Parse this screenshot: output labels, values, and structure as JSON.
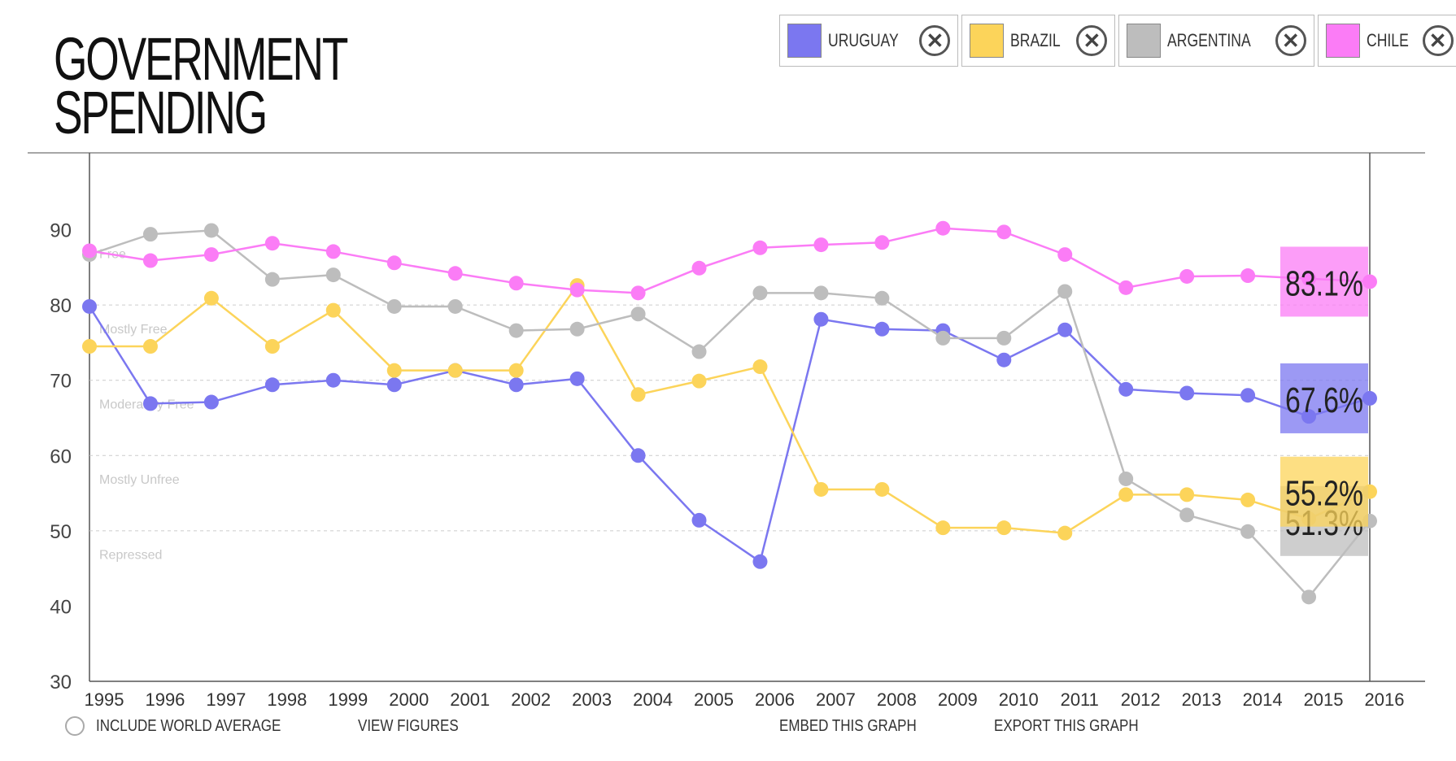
{
  "title": {
    "line1": "GOVERNMENT",
    "line2": "SPENDING"
  },
  "colors": {
    "uruguay": "#7b77f0",
    "brazil": "#fcd45a",
    "argentina": "#bdbdbd",
    "chile": "#fb7cf6"
  },
  "legend": [
    {
      "label": "URUGUAY",
      "color": "#7b77f0",
      "close": "✕"
    },
    {
      "label": "BRAZIL",
      "color": "#fcd45a",
      "close": "✕"
    },
    {
      "label": "ARGENTINA",
      "color": "#bdbdbd",
      "close": "✕"
    },
    {
      "label": "CHILE",
      "color": "#fb7cf6",
      "close": "✕"
    }
  ],
  "controls": {
    "world_average": "INCLUDE WORLD AVERAGE",
    "view_figures": "VIEW FIGURES",
    "embed": "EMBED THIS GRAPH",
    "export": "EXPORT THIS GRAPH"
  },
  "chart_data": {
    "type": "line",
    "title": "GOVERNMENT SPENDING",
    "xlabel": "",
    "ylabel": "",
    "ylim": [
      30,
      100
    ],
    "yticks": [
      30,
      40,
      50,
      60,
      70,
      80,
      90
    ],
    "x": [
      1995,
      1996,
      1997,
      1998,
      1999,
      2000,
      2001,
      2002,
      2003,
      2004,
      2005,
      2006,
      2007,
      2008,
      2009,
      2010,
      2011,
      2012,
      2013,
      2014,
      2015,
      2016
    ],
    "bands": [
      {
        "label": "Free",
        "y": 87
      },
      {
        "label": "Mostly Free",
        "y": 77
      },
      {
        "label": "Moderately Free",
        "y": 67
      },
      {
        "label": "Mostly Unfree",
        "y": 57
      },
      {
        "label": "Repressed",
        "y": 47
      }
    ],
    "grid": [
      50,
      60,
      70,
      80
    ],
    "series": [
      {
        "name": "URUGUAY",
        "color": "#7b77f0",
        "latest_label": "67.6%",
        "values": [
          79.8,
          66.9,
          67.1,
          69.4,
          70.0,
          69.4,
          71.3,
          69.4,
          70.2,
          60.0,
          51.4,
          45.9,
          78.1,
          76.8,
          76.6,
          72.7,
          76.7,
          68.8,
          68.3,
          68.0,
          65.2,
          67.6
        ]
      },
      {
        "name": "BRAZIL",
        "color": "#fcd45a",
        "latest_label": "55.2%",
        "values": [
          74.5,
          74.5,
          80.9,
          74.5,
          79.3,
          71.3,
          71.3,
          71.3,
          82.6,
          68.1,
          69.9,
          71.8,
          55.5,
          55.5,
          50.4,
          50.4,
          49.7,
          54.8,
          54.8,
          54.1,
          51.6,
          55.2
        ]
      },
      {
        "name": "ARGENTINA",
        "color": "#bdbdbd",
        "latest_label": "51.3%",
        "values": [
          86.7,
          89.4,
          89.9,
          83.4,
          84.0,
          79.8,
          79.8,
          76.6,
          76.8,
          78.8,
          73.8,
          81.6,
          81.6,
          80.9,
          75.6,
          75.6,
          81.8,
          56.9,
          52.1,
          49.9,
          41.2,
          51.3
        ]
      },
      {
        "name": "CHILE",
        "color": "#fb7cf6",
        "latest_label": "83.1%",
        "values": [
          87.2,
          85.9,
          86.7,
          88.2,
          87.1,
          85.6,
          84.2,
          82.9,
          82.0,
          81.6,
          84.9,
          87.6,
          88.0,
          88.3,
          90.2,
          89.7,
          86.7,
          82.3,
          83.8,
          83.9,
          83.5,
          83.1
        ]
      }
    ]
  }
}
